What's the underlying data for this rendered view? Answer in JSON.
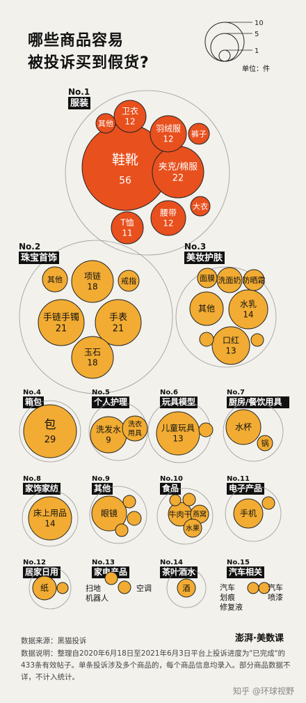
{
  "title": {
    "line1": "哪些商品容易",
    "line2": "被投诉买到假货?"
  },
  "legend": {
    "ticks": [
      "10",
      "5",
      "1"
    ],
    "unit": "单位：件"
  },
  "footer": {
    "source": "数据来源：黑猫投诉",
    "note": "数据说明：整理自2020年6月18日至2021年6月3日平台上投诉进度为\"已完成\"的433条有效帖子。单条投诉涉及多个商品的，每个商品信息均录入。部分商品数据不详，不计入统计。",
    "brand": "澎湃·美数课",
    "watermark": "知乎 @环球视野"
  },
  "colors": {
    "clothing": "#e8501e",
    "other": "#f2ac33",
    "stroke": "#222222",
    "background": "#f2f1ec"
  },
  "chart_data": {
    "type": "bubble",
    "unit": "件",
    "categories": [
      {
        "rank": "No.1",
        "name": "服装",
        "items": [
          {
            "label": "鞋靴",
            "value": 56
          },
          {
            "label": "夹克/棉服",
            "value": 22
          },
          {
            "label": "卫衣",
            "value": 12
          },
          {
            "label": "羽绒服",
            "value": 12
          },
          {
            "label": "腰带",
            "value": 12
          },
          {
            "label": "T恤",
            "value": 11
          },
          {
            "label": "其他",
            "value": null
          },
          {
            "label": "裤子",
            "value": null
          },
          {
            "label": "大衣",
            "value": null
          }
        ]
      },
      {
        "rank": "No.2",
        "name": "珠宝首饰",
        "items": [
          {
            "label": "手链手镯",
            "value": 21
          },
          {
            "label": "手表",
            "value": 21
          },
          {
            "label": "项链",
            "value": 18
          },
          {
            "label": "玉石",
            "value": 18
          },
          {
            "label": "其他",
            "value": null
          },
          {
            "label": "戒指",
            "value": null
          }
        ]
      },
      {
        "rank": "No.3",
        "name": "美妆护肤",
        "items": [
          {
            "label": "水乳",
            "value": 14
          },
          {
            "label": "口红",
            "value": 13
          },
          {
            "label": "其他",
            "value": null
          },
          {
            "label": "面膜",
            "value": null
          },
          {
            "label": "洗面奶",
            "value": null
          },
          {
            "label": "防晒霜",
            "value": null
          }
        ]
      },
      {
        "rank": "No.4",
        "name": "箱包",
        "items": [
          {
            "label": "包",
            "value": 29
          }
        ]
      },
      {
        "rank": "No.5",
        "name": "个人护理",
        "items": [
          {
            "label": "洗发水",
            "value": 9
          },
          {
            "label": "洗衣用具",
            "value": null
          }
        ]
      },
      {
        "rank": "No.6",
        "name": "玩具模型",
        "items": [
          {
            "label": "儿童玩具",
            "value": 13
          }
        ]
      },
      {
        "rank": "No.7",
        "name": "厨房/餐饮用具",
        "items": [
          {
            "label": "水杯",
            "value": null
          },
          {
            "label": "锅",
            "value": null
          }
        ]
      },
      {
        "rank": "No.8",
        "name": "家饰家纺",
        "items": [
          {
            "label": "床上用品",
            "value": 14
          }
        ]
      },
      {
        "rank": "No.9",
        "name": "其他",
        "items": [
          {
            "label": "眼镜",
            "value": null
          }
        ]
      },
      {
        "rank": "No.10",
        "name": "食品",
        "items": [
          {
            "label": "牛肉干",
            "value": null
          },
          {
            "label": "燕窝",
            "value": null
          },
          {
            "label": "水果",
            "value": null
          }
        ]
      },
      {
        "rank": "No.11",
        "name": "电子产品",
        "items": [
          {
            "label": "手机",
            "value": null
          }
        ]
      },
      {
        "rank": "No.12",
        "name": "居家日用",
        "items": [
          {
            "label": "纸",
            "value": null
          }
        ]
      },
      {
        "rank": "No.13",
        "name": "家电产品",
        "items": [
          {
            "label": "扫地机器人",
            "value": null
          },
          {
            "label": "空调",
            "value": null
          }
        ]
      },
      {
        "rank": "No.14",
        "name": "茶叶酒水",
        "items": [
          {
            "label": "酒",
            "value": null
          }
        ]
      },
      {
        "rank": "No.15",
        "name": "汽车相关",
        "items": [
          {
            "label": "汽车划痕修复液",
            "value": null
          },
          {
            "label": "汽车喷漆",
            "value": null
          }
        ]
      }
    ]
  }
}
